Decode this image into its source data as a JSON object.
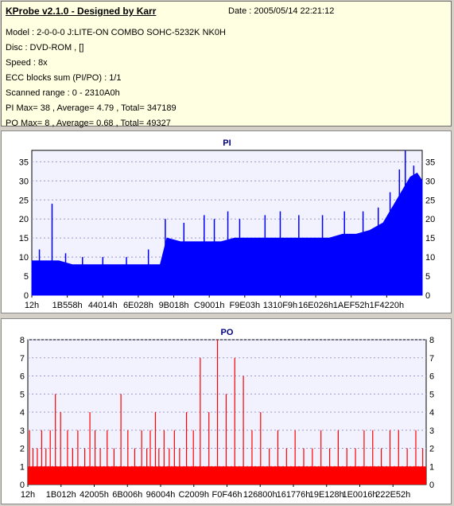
{
  "header": {
    "title": "KProbe v2.1.0 - Designed by Karr",
    "date": "Date : 2005/05/14 22:21:12",
    "lines": [
      "Model : 2-0-0-0 J:LITE-ON COMBO SOHC-5232K NK0H",
      "Disc : DVD-ROM ,  []",
      "Speed : 8x",
      "ECC blocks sum (PI/PO) : 1/1",
      "Scanned range : 0 - 2310A0h",
      "PI Max= 38 , Average= 4.79 , Total= 347189",
      "PO Max= 8 , Average= 0.68 , Total= 49327"
    ]
  },
  "chart_data": [
    {
      "type": "area",
      "title": "PI",
      "color": "#0000ff",
      "ylim": [
        0,
        38
      ],
      "yticks": [
        0,
        5,
        10,
        15,
        20,
        25,
        30,
        35
      ],
      "xlim": [
        0,
        2310
      ],
      "xtick_labels": [
        "12h",
        "1B558h",
        "44014h",
        "6E028h",
        "9B018h",
        "C9001h",
        "F9E03h",
        "1310F9h",
        "16E026h",
        "1AEF52h",
        "1F4220h"
      ],
      "grid": true,
      "x": [
        0,
        80,
        160,
        240,
        320,
        400,
        480,
        560,
        640,
        720,
        760,
        800,
        880,
        960,
        1040,
        1120,
        1200,
        1280,
        1360,
        1440,
        1520,
        1600,
        1680,
        1760,
        1840,
        1920,
        2000,
        2040,
        2080,
        2120,
        2160,
        2200,
        2240,
        2280,
        2310
      ],
      "y": [
        9,
        9,
        9,
        8,
        8,
        8,
        8,
        8,
        8,
        8,
        8,
        15,
        14,
        14,
        14,
        14,
        15,
        15,
        15,
        15,
        15,
        15,
        15,
        15,
        16,
        16,
        17,
        18,
        19,
        22,
        25,
        28,
        31,
        32,
        30
      ],
      "peaks": [
        {
          "x": 45,
          "y": 12
        },
        {
          "x": 120,
          "y": 24
        },
        {
          "x": 200,
          "y": 11
        },
        {
          "x": 300,
          "y": 10
        },
        {
          "x": 420,
          "y": 10
        },
        {
          "x": 560,
          "y": 10
        },
        {
          "x": 690,
          "y": 12
        },
        {
          "x": 790,
          "y": 20
        },
        {
          "x": 900,
          "y": 19
        },
        {
          "x": 1020,
          "y": 21
        },
        {
          "x": 1080,
          "y": 20
        },
        {
          "x": 1160,
          "y": 22
        },
        {
          "x": 1230,
          "y": 20
        },
        {
          "x": 1380,
          "y": 21
        },
        {
          "x": 1470,
          "y": 22
        },
        {
          "x": 1580,
          "y": 21
        },
        {
          "x": 1720,
          "y": 21
        },
        {
          "x": 1850,
          "y": 22
        },
        {
          "x": 1960,
          "y": 22
        },
        {
          "x": 2050,
          "y": 23
        },
        {
          "x": 2120,
          "y": 27
        },
        {
          "x": 2175,
          "y": 33
        },
        {
          "x": 2210,
          "y": 38
        },
        {
          "x": 2260,
          "y": 34
        }
      ]
    },
    {
      "type": "bar",
      "title": "PO",
      "color": "#ff0000",
      "ylim": [
        0,
        8
      ],
      "yticks": [
        0,
        1,
        2,
        3,
        4,
        5,
        6,
        7,
        8
      ],
      "xlim": [
        0,
        2310
      ],
      "xtick_labels": [
        "12h",
        "1B012h",
        "42005h",
        "6B006h",
        "96004h",
        "C2009h",
        "F0F46h",
        "126800h",
        "161776h",
        "19E128h",
        "1E0016h",
        "222E52h"
      ],
      "grid": true,
      "baseline": 1,
      "x": [
        10,
        30,
        55,
        80,
        105,
        130,
        160,
        190,
        230,
        260,
        290,
        330,
        360,
        390,
        420,
        460,
        500,
        540,
        580,
        620,
        660,
        690,
        710,
        740,
        760,
        790,
        820,
        850,
        880,
        920,
        960,
        1000,
        1050,
        1100,
        1150,
        1200,
        1250,
        1300,
        1350,
        1400,
        1450,
        1500,
        1550,
        1600,
        1650,
        1700,
        1750,
        1800,
        1850,
        1900,
        1950,
        2000,
        2050,
        2100,
        2150,
        2200,
        2250,
        2290
      ],
      "y": [
        3,
        2,
        2,
        3,
        2,
        3,
        5,
        4,
        3,
        2,
        3,
        2,
        4,
        3,
        2,
        3,
        2,
        5,
        3,
        2,
        3,
        2,
        3,
        4,
        2,
        3,
        2,
        3,
        2,
        4,
        3,
        7,
        4,
        8,
        5,
        7,
        6,
        3,
        4,
        2,
        3,
        2,
        3,
        2,
        2,
        3,
        2,
        3,
        2,
        2,
        3,
        3,
        2,
        3,
        3,
        2,
        3,
        2
      ]
    }
  ]
}
